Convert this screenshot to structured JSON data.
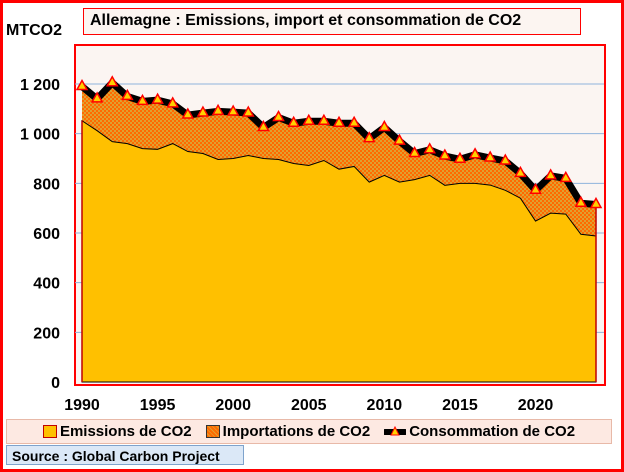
{
  "chart_data": {
    "type": "area",
    "title": "Allemagne : Emissions, import et consommation de CO2",
    "ylabel": "MTCO2",
    "xlabel": "",
    "ylim": [
      0,
      1200
    ],
    "yticks": [
      0,
      200,
      400,
      600,
      800,
      1000,
      1200
    ],
    "ytick_labels": [
      "0",
      "200",
      "400",
      "600",
      "800",
      "1 000",
      "1 200"
    ],
    "xticks": [
      1990,
      1995,
      2000,
      2005,
      2010,
      2015,
      2020
    ],
    "xtick_labels": [
      "1990",
      "1995",
      "2000",
      "2005",
      "2010",
      "2015",
      "2020"
    ],
    "grid": true,
    "legend_position": "bottom",
    "x": [
      1990,
      1991,
      1992,
      1993,
      1994,
      1995,
      1996,
      1997,
      1998,
      1999,
      2000,
      2001,
      2002,
      2003,
      2004,
      2005,
      2006,
      2007,
      2008,
      2009,
      2010,
      2011,
      2012,
      2013,
      2014,
      2015,
      2016,
      2017,
      2018,
      2019,
      2020,
      2021,
      2022,
      2023,
      2024
    ],
    "series": [
      {
        "name": "Emissions de CO2",
        "kind": "area",
        "color": "#ffc000",
        "values": [
          1052,
          1012,
          968,
          960,
          940,
          937,
          960,
          928,
          920,
          896,
          900,
          912,
          900,
          896,
          880,
          872,
          892,
          857,
          868,
          805,
          832,
          805,
          815,
          832,
          792,
          800,
          800,
          793,
          772,
          740,
          648,
          680,
          676,
          595,
          588
        ]
      },
      {
        "name": "Importations de CO2",
        "kind": "stacked-area",
        "color": "#ff6600",
        "values": [
          138,
          128,
          237,
          190,
          190,
          198,
          160,
          147,
          163,
          194,
          187,
          171,
          125,
          169,
          162,
          178,
          158,
          185,
          174,
          175,
          193,
          165,
          105,
          103,
          118,
          97,
          115,
          109,
          118,
          100,
          124,
          150,
          144,
          125,
          127
        ]
      },
      {
        "name": "Consommation de CO2",
        "kind": "line",
        "color": "#000000",
        "values": [
          1190,
          1140,
          1205,
          1150,
          1130,
          1135,
          1120,
          1075,
          1083,
          1090,
          1087,
          1083,
          1025,
          1065,
          1042,
          1050,
          1050,
          1042,
          1042,
          980,
          1025,
          970,
          920,
          935,
          910,
          897,
          915,
          902,
          890,
          840,
          772,
          830,
          820,
          720,
          715
        ]
      }
    ]
  },
  "source_label": "Source : Global Carbon Project"
}
